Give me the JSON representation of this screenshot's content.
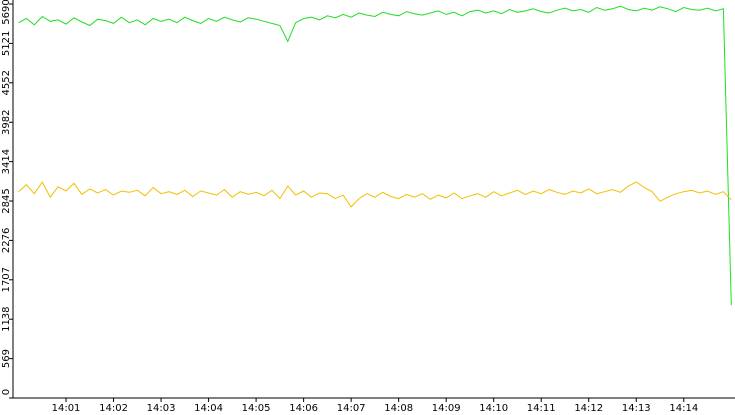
{
  "chart_data": {
    "type": "line",
    "categories": [
      null,
      null,
      null,
      null,
      null,
      null,
      "14:01",
      null,
      null,
      null,
      null,
      null,
      "14:02",
      null,
      null,
      null,
      null,
      null,
      "14:03",
      null,
      null,
      null,
      null,
      null,
      "14:04",
      null,
      null,
      null,
      null,
      null,
      "14:05",
      null,
      null,
      null,
      null,
      null,
      "14:06",
      null,
      null,
      null,
      null,
      null,
      "14:07",
      null,
      null,
      null,
      null,
      null,
      "14:08",
      null,
      null,
      null,
      null,
      null,
      "14:09",
      null,
      null,
      null,
      null,
      null,
      "14:10",
      null,
      null,
      null,
      null,
      null,
      "14:11",
      null,
      null,
      null,
      null,
      null,
      "14:12",
      null,
      null,
      null,
      null,
      null,
      "14:13",
      null,
      null,
      null,
      null,
      null,
      "14:14",
      null,
      null,
      null,
      null,
      null,
      null
    ],
    "series": [
      {
        "color": "#22dd22",
        "values": [
          5420,
          5480,
          5390,
          5510,
          5440,
          5460,
          5400,
          5490,
          5430,
          5380,
          5470,
          5450,
          5410,
          5500,
          5420,
          5460,
          5390,
          5480,
          5440,
          5470,
          5420,
          5500,
          5450,
          5410,
          5480,
          5440,
          5500,
          5460,
          5430,
          5490,
          5470,
          5440,
          5410,
          5380,
          5150,
          5420,
          5480,
          5500,
          5460,
          5520,
          5490,
          5540,
          5500,
          5560,
          5530,
          5510,
          5570,
          5540,
          5520,
          5580,
          5550,
          5530,
          5560,
          5590,
          5540,
          5570,
          5520,
          5580,
          5600,
          5560,
          5590,
          5550,
          5610,
          5570,
          5590,
          5620,
          5580,
          5560,
          5600,
          5630,
          5590,
          5610,
          5570,
          5640,
          5600,
          5620,
          5660,
          5610,
          5590,
          5630,
          5600,
          5650,
          5620,
          5580,
          5640,
          5610,
          5600,
          5630,
          5590,
          5620,
          1340
        ]
      },
      {
        "color": "#f0c000",
        "values": [
          2980,
          3080,
          2950,
          3120,
          2900,
          3050,
          2990,
          3100,
          2940,
          3020,
          2960,
          3010,
          2930,
          2990,
          2970,
          3000,
          2920,
          3040,
          2950,
          2980,
          2940,
          3000,
          2910,
          2990,
          2960,
          2930,
          3010,
          2900,
          2980,
          2940,
          2970,
          2920,
          3000,
          2880,
          3060,
          2930,
          2990,
          2900,
          2960,
          2950,
          2880,
          2930,
          2760,
          2880,
          2950,
          2900,
          2970,
          2910,
          2880,
          2940,
          2900,
          2950,
          2870,
          2930,
          2890,
          2960,
          2880,
          2920,
          2950,
          2900,
          2980,
          2920,
          2960,
          3000,
          2940,
          2990,
          2950,
          3010,
          2970,
          2940,
          2990,
          2960,
          3020,
          2950,
          2980,
          3010,
          2970,
          3060,
          3120,
          3040,
          2980,
          2840,
          2900,
          2950,
          2980,
          3000,
          2960,
          2990,
          2940,
          2980,
          2860
        ]
      }
    ],
    "ylim": [
      0,
      5690
    ],
    "yticks": [
      0,
      569,
      1138,
      1707,
      2276,
      2845,
      3414,
      3982,
      4552,
      5121,
      5690
    ]
  }
}
